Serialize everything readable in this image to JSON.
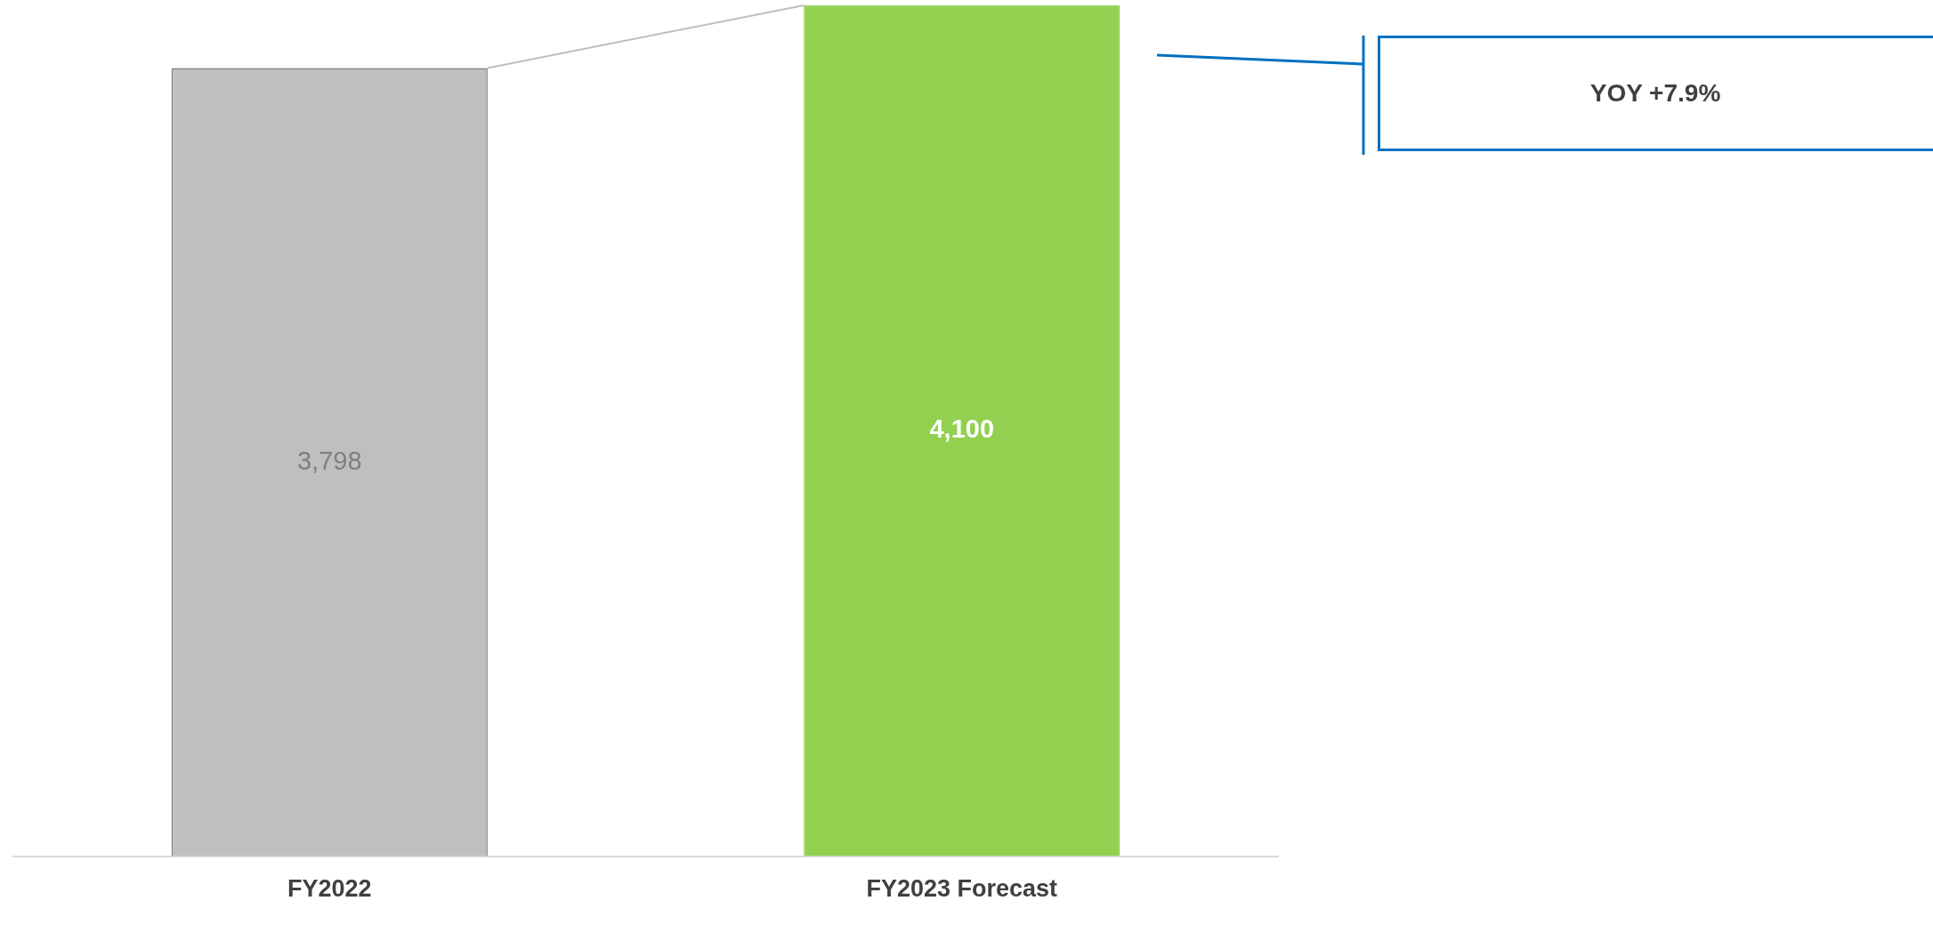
{
  "chart_data": {
    "type": "bar",
    "categories": [
      "FY2022",
      "FY2023 Forecast"
    ],
    "values": [
      3798,
      4100
    ],
    "colors": [
      "#bfbfbf",
      "#92d050"
    ],
    "value_labels": [
      "3,798",
      "4,100"
    ],
    "tick_labels": "x",
    "grid": false,
    "legend": false,
    "annotations": [
      "YOY +7.9%"
    ]
  }
}
